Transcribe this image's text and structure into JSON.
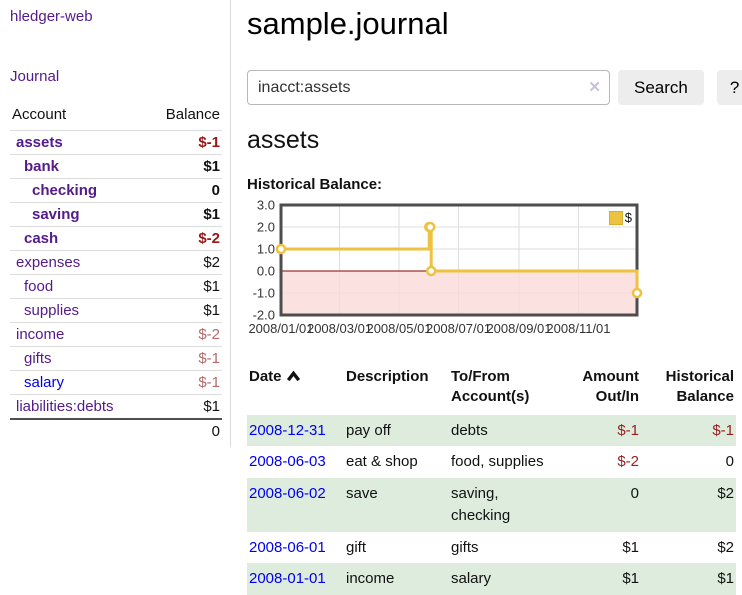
{
  "brand": {
    "title": "hledger-web"
  },
  "sidebar": {
    "nav_journal": "Journal",
    "accounts": {
      "col_account": "Account",
      "col_balance": "Balance",
      "rows": [
        {
          "name": "assets",
          "balance": "$-1",
          "indent": 1,
          "bold": true,
          "balance_style": "neg-strong"
        },
        {
          "name": "bank",
          "balance": "$1",
          "indent": 2,
          "bold": true,
          "balance_style": "pos"
        },
        {
          "name": "checking",
          "balance": "0",
          "indent": 3,
          "bold": true,
          "balance_style": "pos"
        },
        {
          "name": "saving",
          "balance": "$1",
          "indent": 3,
          "bold": true,
          "balance_style": "pos"
        },
        {
          "name": "cash",
          "balance": "$-2",
          "indent": 2,
          "bold": true,
          "balance_style": "neg-strong"
        },
        {
          "name": "expenses",
          "balance": "$2",
          "indent": 1,
          "bold": false,
          "balance_style": "pos"
        },
        {
          "name": "food",
          "balance": "$1",
          "indent": 2,
          "bold": false,
          "balance_style": "pos"
        },
        {
          "name": "supplies",
          "balance": "$1",
          "indent": 2,
          "bold": false,
          "balance_style": "pos"
        },
        {
          "name": "income",
          "balance": "$-2",
          "indent": 1,
          "bold": false,
          "balance_style": "neg"
        },
        {
          "name": "gifts",
          "balance": "$-1",
          "indent": 2,
          "bold": false,
          "balance_style": "neg"
        },
        {
          "name": "salary",
          "balance": "$-1",
          "indent": 2,
          "bold": false,
          "balance_style": "neg",
          "link_style": "unvisited"
        },
        {
          "name": "liabilities:debts",
          "balance": "$1",
          "indent": 1,
          "bold": false,
          "balance_style": "pos"
        }
      ],
      "total": "0"
    }
  },
  "main": {
    "title": "sample.journal",
    "search": {
      "value": "inacct:assets",
      "clear": "✕",
      "submit": "Search",
      "help": "?"
    },
    "heading": "assets",
    "chart_title": "Historical Balance:",
    "sort_icon": "chevron-up"
  },
  "chart_data": {
    "type": "line",
    "title": "Historical Balance",
    "step": "after",
    "x_range": [
      "2008-01-01",
      "2008-12-31"
    ],
    "ylim": [
      -2,
      3
    ],
    "y_ticks": [
      "3.0",
      "2.0",
      "1.0",
      "0.0",
      "-1.0",
      "-2.0"
    ],
    "x_ticks": [
      "2008/01/01",
      "2008/03/01",
      "2008/05/01",
      "2008/07/01",
      "2008/09/01",
      "2008/11/01"
    ],
    "grid": true,
    "legend_position": "top-right",
    "series": [
      {
        "name": "$",
        "color": "#EDC240",
        "points": [
          [
            "2008-01-01",
            1
          ],
          [
            "2008-06-01",
            2
          ],
          [
            "2008-06-02",
            2
          ],
          [
            "2008-06-03",
            0
          ],
          [
            "2008-12-31",
            -1
          ]
        ]
      }
    ],
    "negative_fill": "#fbd9d9",
    "zero_line_color": "#8b0000",
    "border_color": "#4d4d4d",
    "grid_color": "#dddddd"
  },
  "register": {
    "headers": {
      "date": "Date",
      "description": "Description",
      "accounts": "To/From Account(s)",
      "amount": "Amount Out/In",
      "balance": "Historical Balance"
    },
    "rows": [
      {
        "date": "2008-12-31",
        "description": "pay off",
        "accounts": "debts",
        "amount": "$-1",
        "balance": "$-1",
        "amount_neg": true,
        "balance_neg": true
      },
      {
        "date": "2008-06-03",
        "description": "eat & shop",
        "accounts": "food, supplies",
        "amount": "$-2",
        "balance": "0",
        "amount_neg": true,
        "balance_neg": false
      },
      {
        "date": "2008-06-02",
        "description": "save",
        "accounts": "saving, checking",
        "amount": "0",
        "balance": "$2",
        "amount_neg": false,
        "balance_neg": false
      },
      {
        "date": "2008-06-01",
        "description": "gift",
        "accounts": "gifts",
        "amount": "$1",
        "balance": "$2",
        "amount_neg": false,
        "balance_neg": false
      },
      {
        "date": "2008-01-01",
        "description": "income",
        "accounts": "salary",
        "amount": "$1",
        "balance": "$1",
        "amount_neg": false,
        "balance_neg": false
      }
    ]
  }
}
